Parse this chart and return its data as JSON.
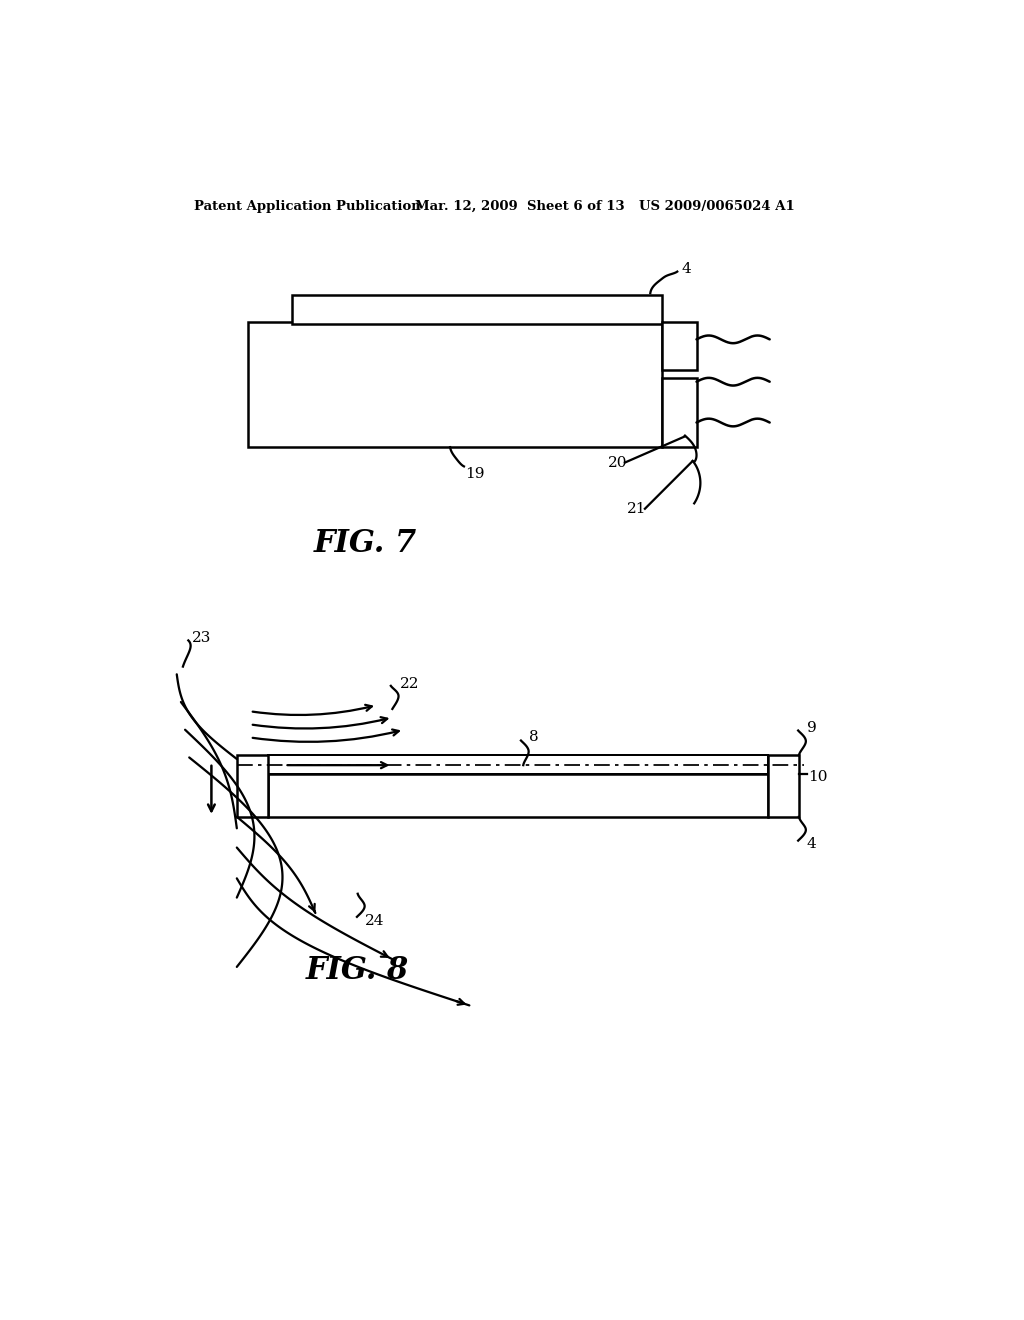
{
  "bg_color": "#ffffff",
  "header_left": "Patent Application Publication",
  "header_mid": "Mar. 12, 2009  Sheet 6 of 13",
  "header_right": "US 2009/0065024 A1",
  "fig7_title": "FIG. 7",
  "fig8_title": "FIG. 8",
  "line_color": "#000000",
  "lw": 1.8
}
